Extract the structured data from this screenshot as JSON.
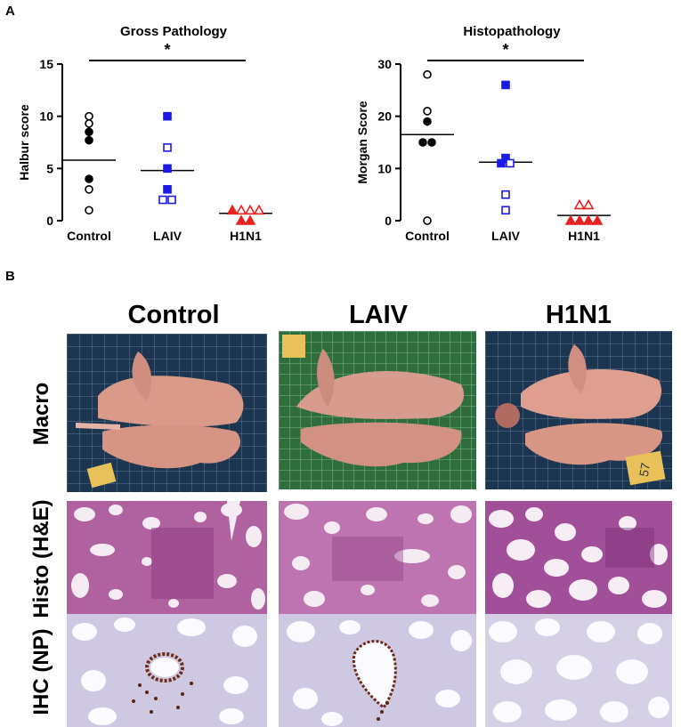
{
  "panel_a": {
    "letter": "A"
  },
  "panel_b": {
    "letter": "B",
    "columns": [
      "Control",
      "LAIV",
      "H1N1"
    ],
    "rows": [
      "Macro",
      "Histo (H&E)",
      "IHC (NP)"
    ],
    "macro_tag_texts": [
      "57"
    ]
  },
  "colors": {
    "control": "#000000",
    "laiv": "#1a1ae6",
    "h1n1": "#e8201f",
    "grid_bg": "#1c3550",
    "grid_bg_green": "#2f6e3c",
    "lung": "#d99a8a",
    "he_purple": "#a0509a",
    "ihc_blue": "#c9c3e0"
  },
  "chart_data": [
    {
      "type": "scatter",
      "title": "Gross Pathology",
      "xlabel": "",
      "ylabel": "Halbur score",
      "ylim": [
        0,
        15
      ],
      "yticks": [
        "0",
        "5",
        "10",
        "15"
      ],
      "categories": [
        "Control",
        "LAIV",
        "H1N1"
      ],
      "significance": {
        "label": "*",
        "from": "Control",
        "to": "H1N1"
      },
      "series": [
        {
          "category": "Control",
          "points": [
            {
              "y": 10,
              "filled": false
            },
            {
              "y": 9.3,
              "filled": false
            },
            {
              "y": 8.5,
              "filled": true
            },
            {
              "y": 7.7,
              "filled": true
            },
            {
              "y": 4,
              "filled": true
            },
            {
              "y": 3,
              "filled": false
            },
            {
              "y": 1,
              "filled": false
            }
          ],
          "mean": 5.8
        },
        {
          "category": "LAIV",
          "points": [
            {
              "y": 10,
              "filled": true
            },
            {
              "y": 7,
              "filled": false
            },
            {
              "y": 5,
              "filled": true
            },
            {
              "y": 3,
              "filled": true
            },
            {
              "y": 2,
              "filled": false
            },
            {
              "y": 2,
              "filled": false
            }
          ],
          "mean": 4.8
        },
        {
          "category": "H1N1",
          "points": [
            {
              "y": 1,
              "filled": true
            },
            {
              "y": 1,
              "filled": false
            },
            {
              "y": 1,
              "filled": false
            },
            {
              "y": 1,
              "filled": false
            },
            {
              "y": 0,
              "filled": true
            },
            {
              "y": 0,
              "filled": true
            }
          ],
          "mean": 0.7
        }
      ]
    },
    {
      "type": "scatter",
      "title": "Histopathology",
      "xlabel": "",
      "ylabel": "Morgan Score",
      "ylim": [
        0,
        30
      ],
      "yticks": [
        "0",
        "10",
        "20",
        "30"
      ],
      "categories": [
        "Control",
        "LAIV",
        "H1N1"
      ],
      "significance": {
        "label": "*",
        "from": "Control",
        "to": "H1N1"
      },
      "series": [
        {
          "category": "Control",
          "points": [
            {
              "y": 28,
              "filled": false
            },
            {
              "y": 21,
              "filled": false
            },
            {
              "y": 19,
              "filled": true
            },
            {
              "y": 15,
              "filled": true
            },
            {
              "y": 15,
              "filled": true
            },
            {
              "y": 0,
              "filled": false
            }
          ],
          "mean": 16.5
        },
        {
          "category": "LAIV",
          "points": [
            {
              "y": 26,
              "filled": true
            },
            {
              "y": 12,
              "filled": true
            },
            {
              "y": 11,
              "filled": true
            },
            {
              "y": 11,
              "filled": false
            },
            {
              "y": 5,
              "filled": false
            },
            {
              "y": 2,
              "filled": false
            }
          ],
          "mean": 11.2
        },
        {
          "category": "H1N1",
          "points": [
            {
              "y": 3,
              "filled": false
            },
            {
              "y": 3,
              "filled": false
            },
            {
              "y": 0,
              "filled": true
            },
            {
              "y": 0,
              "filled": true
            },
            {
              "y": 0,
              "filled": true
            },
            {
              "y": 0,
              "filled": true
            }
          ],
          "mean": 1
        }
      ]
    }
  ]
}
